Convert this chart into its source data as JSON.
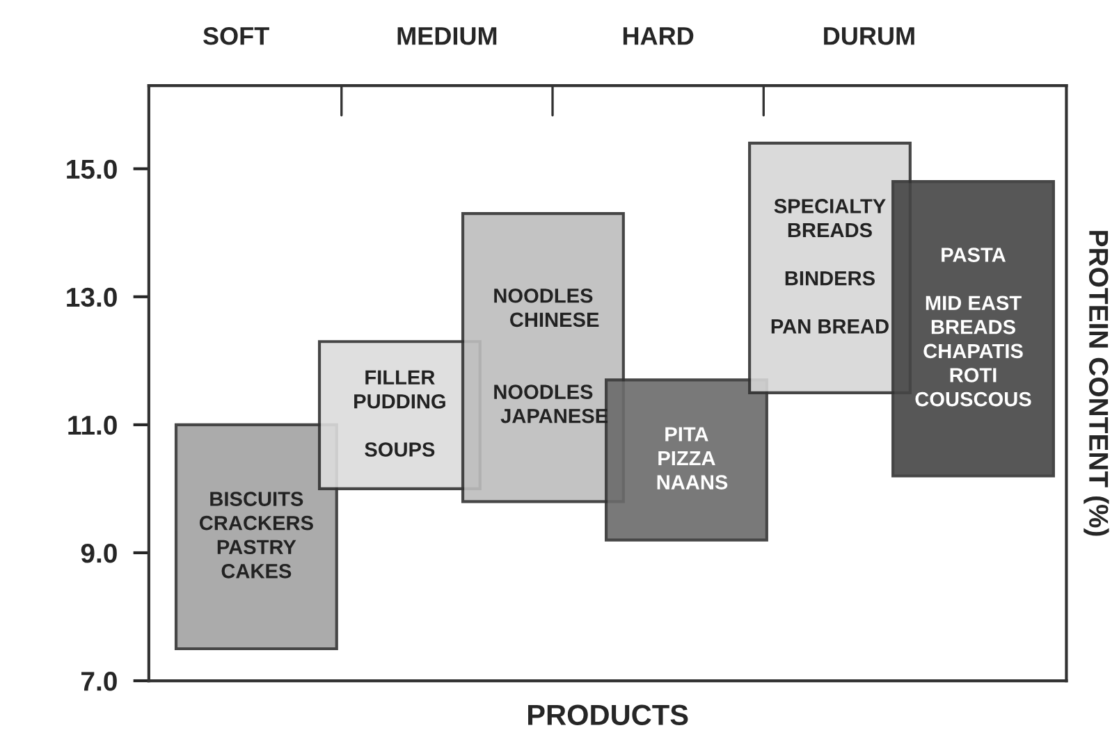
{
  "chart_data": {
    "type": "bar",
    "xlabel": "PRODUCTS",
    "ylabel": "PROTEIN CONTENT (%)",
    "categories": [
      "BISCUITS\nCRACKERS\nPASTRY\nCAKES",
      "FILLER\nPUDDING\n\nSOUPS",
      "NOODLES\n    CHINESE\n\n\nNOODLES\n    JAPANESE",
      "PITA\nPIZZA\n  NAANS",
      "SPECIALTY\nBREADS\n\nBINDERS\n\nPAN BREAD",
      "PASTA\n\nMID EAST\nBREADS\nCHAPATIS\nROTI\nCOUSCOUS"
    ],
    "base": [
      7.5,
      10.0,
      9.8,
      9.2,
      11.5,
      10.2
    ],
    "values": [
      3.5,
      2.3,
      4.5,
      2.5,
      3.9,
      4.6
    ],
    "colors": [
      "#a3a3a3",
      "#dcdcdc",
      "#bdbdbd",
      "#6b6b6b",
      "#d6d6d6",
      "#454545"
    ],
    "ylim": [
      7,
      16.3
    ],
    "yticks": [
      {
        "value": 7,
        "label": "7.0"
      },
      {
        "value": 9,
        "label": "9.0"
      },
      {
        "value": 11,
        "label": "11.0"
      },
      {
        "value": 13,
        "label": "13.0"
      },
      {
        "value": 15,
        "label": "15.0"
      }
    ],
    "tick_labels": "y",
    "annotations": [
      "SOFT",
      "MEDIUM",
      "HARD",
      "DURUM"
    ],
    "grid": false,
    "legend": false
  }
}
